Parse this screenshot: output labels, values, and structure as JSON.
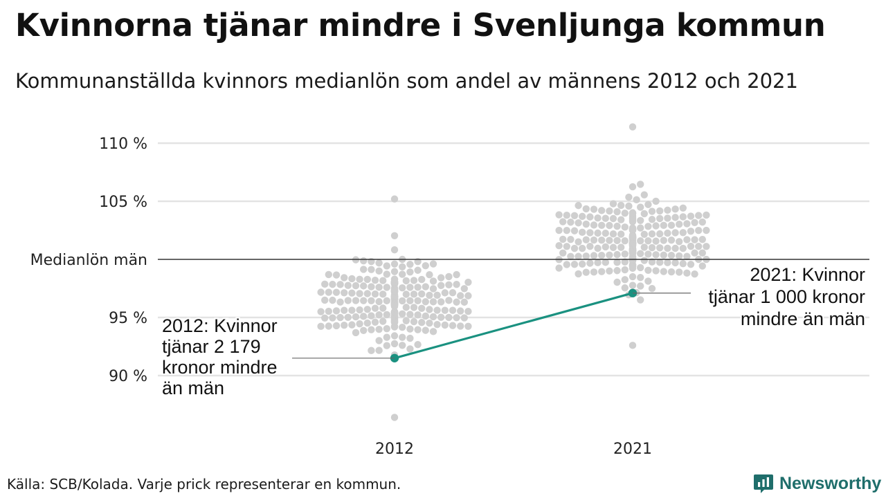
{
  "title": "Kvinnorna tjänar mindre i Svenljunga kommun",
  "subtitle": "Kommunanställda kvinnors medianlön som andel av männens 2012 och 2021",
  "source": "Källa: SCB/Kolada. Varje prick representerar en kommun.",
  "brand": "Newsworthy",
  "colors": {
    "highlight": "#1a9180",
    "dots": "#cfcfcf",
    "grid": "#e3e3e3",
    "reference": "#333333",
    "brand": "#1f6e6b"
  },
  "chart_data": {
    "type": "scatter",
    "subtype": "beeswarm",
    "categories": [
      "2012",
      "2021"
    ],
    "ylim": [
      86.5,
      111.5
    ],
    "yticks": [
      {
        "value": 90,
        "label": "90 %"
      },
      {
        "value": 95,
        "label": "95 %"
      },
      {
        "value": 105,
        "label": "105 %"
      },
      {
        "value": 110,
        "label": "110 %"
      }
    ],
    "reference_line": {
      "value": 100,
      "label": "Medianlön män"
    },
    "distribution": {
      "2012": {
        "count": 290,
        "median": 96.4,
        "spread": 1.75,
        "min": 86.4,
        "max": 105.2
      },
      "2021": {
        "count": 290,
        "median": 101.6,
        "spread": 1.8,
        "min": 92.6,
        "max": 111.4
      }
    },
    "highlight": {
      "name": "Svenljunga",
      "values": [
        {
          "x": "2012",
          "y": 91.5,
          "annotation": [
            "2012: Kvinnor",
            "tjänar 2 179",
            "kronor mindre",
            "än män"
          ]
        },
        {
          "x": "2021",
          "y": 97.1,
          "annotation": [
            "2021: Kvinnor",
            "tjänar 1 000 kronor",
            "mindre än män"
          ]
        }
      ]
    }
  }
}
